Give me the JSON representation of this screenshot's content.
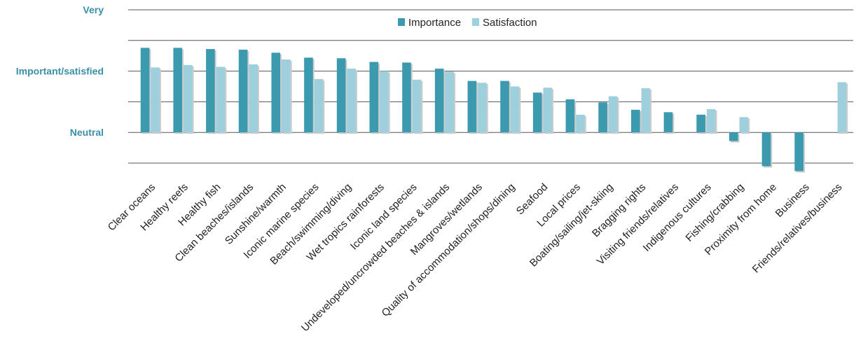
{
  "chart_data": {
    "type": "bar",
    "categories": [
      "Clear oceans",
      "Healthy reefs",
      "Healthy fish",
      "Clean beaches/islands",
      "Sunshine/warmth",
      "Iconic marine species",
      "Beach/swimming/diving",
      "Wet tropics rainforests",
      "Iconic land species",
      "Undeveloped/uncrowded beaches & islands",
      "Mangroves/wetlands",
      "Quality of accommodation/shops/dining",
      "Seafood",
      "Local prices",
      "Boating/sailing/jet-skiing",
      "Bragging rights",
      "Visiting friends/relatives",
      "Indigenous cultures",
      "Fishing/crabbing",
      "Proximity from home",
      "Business",
      "Friends/relatives/business"
    ],
    "series": [
      {
        "name": "Importance",
        "color": "#3b9aae",
        "values": [
          4.38,
          4.38,
          4.36,
          4.35,
          4.3,
          4.22,
          4.21,
          4.15,
          4.14,
          4.04,
          3.84,
          3.84,
          3.65,
          3.54,
          3.49,
          3.37,
          3.33,
          3.29,
          2.86,
          2.45,
          2.37,
          null
        ]
      },
      {
        "name": "Satisfaction",
        "color": "#9ecfdc",
        "values": [
          4.06,
          4.1,
          4.07,
          4.11,
          4.19,
          3.87,
          4.04,
          4.0,
          3.86,
          3.99,
          3.81,
          3.75,
          3.73,
          3.29,
          3.59,
          3.72,
          null,
          3.38,
          3.25,
          null,
          null,
          3.82
        ]
      }
    ],
    "ylim": [
      2.3,
      5
    ],
    "yticks": [
      {
        "value": 5,
        "label": "Very"
      },
      {
        "value": 4,
        "label": "Important/satisfied"
      },
      {
        "value": 3,
        "label": "Neutral"
      }
    ],
    "minor_yticks": [
      2.5,
      3.5,
      4.5
    ],
    "grid": true,
    "legend": "top"
  }
}
